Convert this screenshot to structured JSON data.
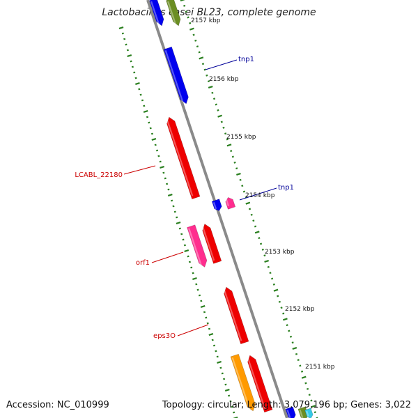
{
  "header": {
    "title": "Lactobacillus casei BL23, complete genome"
  },
  "footer": {
    "accession": "Accession: NC_010999",
    "summary": "Topology: circular; Length: 3,079,196 bp; Genes: 3,022"
  },
  "colors": {
    "backbone": "#8a8a8a",
    "tick": "#2a7f1f",
    "cds_red": "#ee0000",
    "cds_blue": "#0000ee",
    "cds_pink": "#ff2d8e",
    "cds_orange": "#ff9a00",
    "cds_olive": "#6b8e23",
    "cds_cyan": "#35c9e6",
    "label_red": "#cc0000",
    "label_blue": "#000099"
  },
  "ticks": {
    "labels": [
      "2157 kbp",
      "2156 kbp",
      "2155 kbp",
      "2154 kbp",
      "2153 kbp",
      "2152 kbp",
      "2151 kbp"
    ]
  },
  "gene_labels": [
    {
      "text": "tnp1",
      "color": "blue"
    },
    {
      "text": "tnp1",
      "color": "blue"
    },
    {
      "text": "LCABL_22180",
      "color": "red"
    },
    {
      "text": "orf1",
      "color": "red"
    },
    {
      "text": "eps3O",
      "color": "red"
    }
  ]
}
